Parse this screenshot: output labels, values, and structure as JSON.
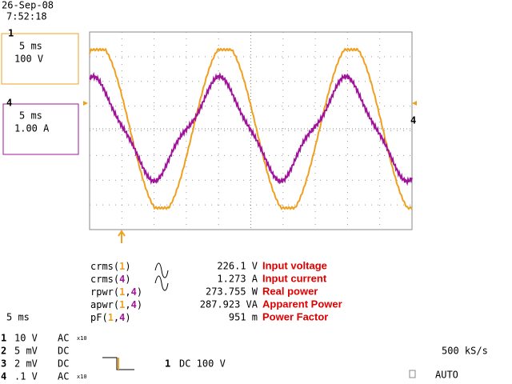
{
  "header": {
    "date": "26-Sep-08",
    "time": "7:52:18"
  },
  "channel_boxes": [
    {
      "marker": "1",
      "timebase": "5 ms",
      "scale": "100 V",
      "color": "#f0a020"
    },
    {
      "marker": "4",
      "timebase": "5 ms",
      "scale": "1.00 A",
      "color": "#a0149a"
    }
  ],
  "right_marker": "4",
  "measurements": [
    {
      "label": [
        "crms(",
        "1",
        ")"
      ],
      "value": "226.1 V",
      "description": "Input voltage"
    },
    {
      "label": [
        "crms(",
        "4",
        ")"
      ],
      "value": "1.273 A",
      "description": "Input current"
    },
    {
      "label": [
        "rpwr(",
        "1",
        ",",
        "4",
        ")"
      ],
      "value": "273.755 W",
      "description": "Real power"
    },
    {
      "label": [
        "apwr(",
        "1",
        ",",
        "4",
        ")"
      ],
      "value": "287.923 VA",
      "description": "Apparent Power"
    },
    {
      "label": [
        "pF(",
        "1",
        ",",
        "4",
        ")"
      ],
      "value": "951 m",
      "description": "Power Factor"
    }
  ],
  "timebase": "5 ms",
  "channels": [
    {
      "number": "1",
      "scale": "10  V",
      "coupling": "AC",
      "probe": "x10"
    },
    {
      "number": "2",
      "scale": "5 mV",
      "coupling": "DC"
    },
    {
      "number": "3",
      "scale": "2 mV",
      "coupling": "DC"
    },
    {
      "number": "4",
      "scale": ".1  V",
      "coupling": "AC",
      "probe": "x10"
    }
  ],
  "trigger": {
    "source": "1",
    "setting": "DC 100 V"
  },
  "sample_rate": "500 kS/s",
  "mode": "AUTO"
}
